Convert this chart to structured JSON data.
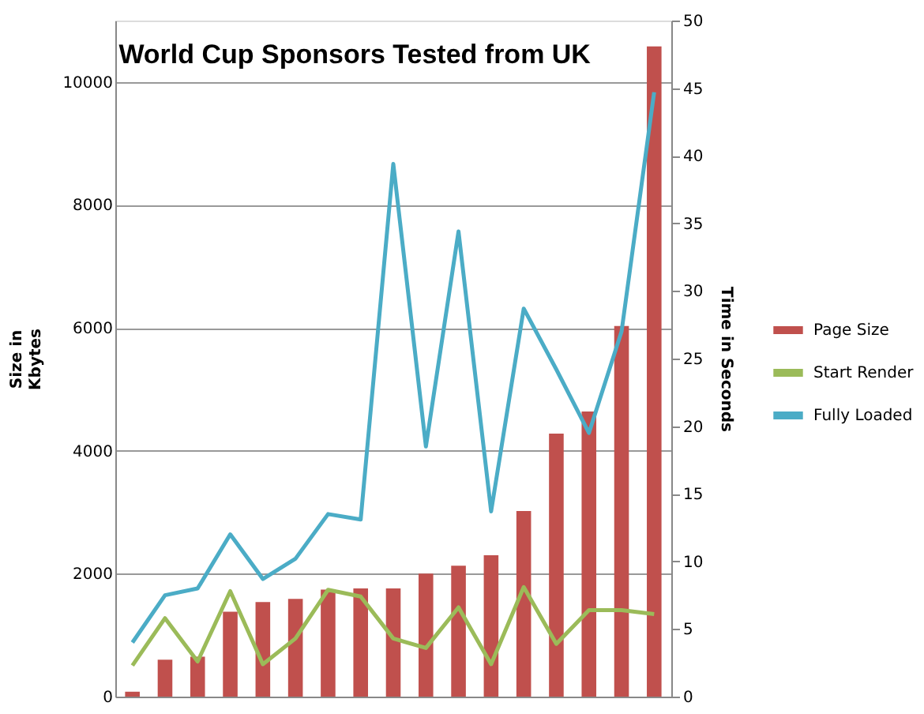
{
  "chart_data": {
    "type": "bar",
    "title": "World Cup Sponsors Tested from UK",
    "ylabel": "Size in\nKbytes",
    "y2label": "Time in Seconds",
    "categories": [
      null,
      null,
      null,
      null,
      null,
      null,
      null,
      null,
      null,
      null,
      null,
      null,
      null,
      null,
      null,
      null,
      null
    ],
    "series": [
      {
        "name": "Page Size",
        "color": "#c0504d",
        "values": [
          80,
          600,
          650,
          1380,
          1540,
          1590,
          1740,
          1760,
          1760,
          2000,
          2130,
          2300,
          3020,
          4280,
          4640,
          6030,
          10580
        ]
      },
      {
        "name": "Start Render",
        "type": "line",
        "axis": "y2",
        "color": "#9bbb59",
        "values": [
          2.3,
          5.8,
          2.6,
          7.8,
          2.4,
          4.3,
          7.9,
          7.4,
          4.3,
          3.6,
          6.6,
          2.4,
          8.1,
          3.9,
          6.4,
          6.4,
          6.1
        ]
      },
      {
        "name": "Fully Loaded",
        "type": "line",
        "axis": "y2",
        "color": "#4bacc6",
        "values": [
          4.0,
          7.5,
          8.0,
          12.0,
          8.7,
          10.2,
          13.5,
          13.1,
          39.4,
          18.5,
          34.4,
          13.7,
          28.7,
          24.2,
          19.5,
          27.0,
          44.7
        ]
      }
    ],
    "ylim": [
      0,
      11000
    ],
    "yticks": [
      0,
      2000,
      4000,
      6000,
      8000,
      10000
    ],
    "y2lim": [
      0,
      50
    ],
    "y2ticks": [
      0,
      5,
      10,
      15,
      20,
      25,
      30,
      35,
      40,
      45,
      50
    ],
    "grid": "y",
    "legend": "right",
    "tick_labels": "y"
  }
}
